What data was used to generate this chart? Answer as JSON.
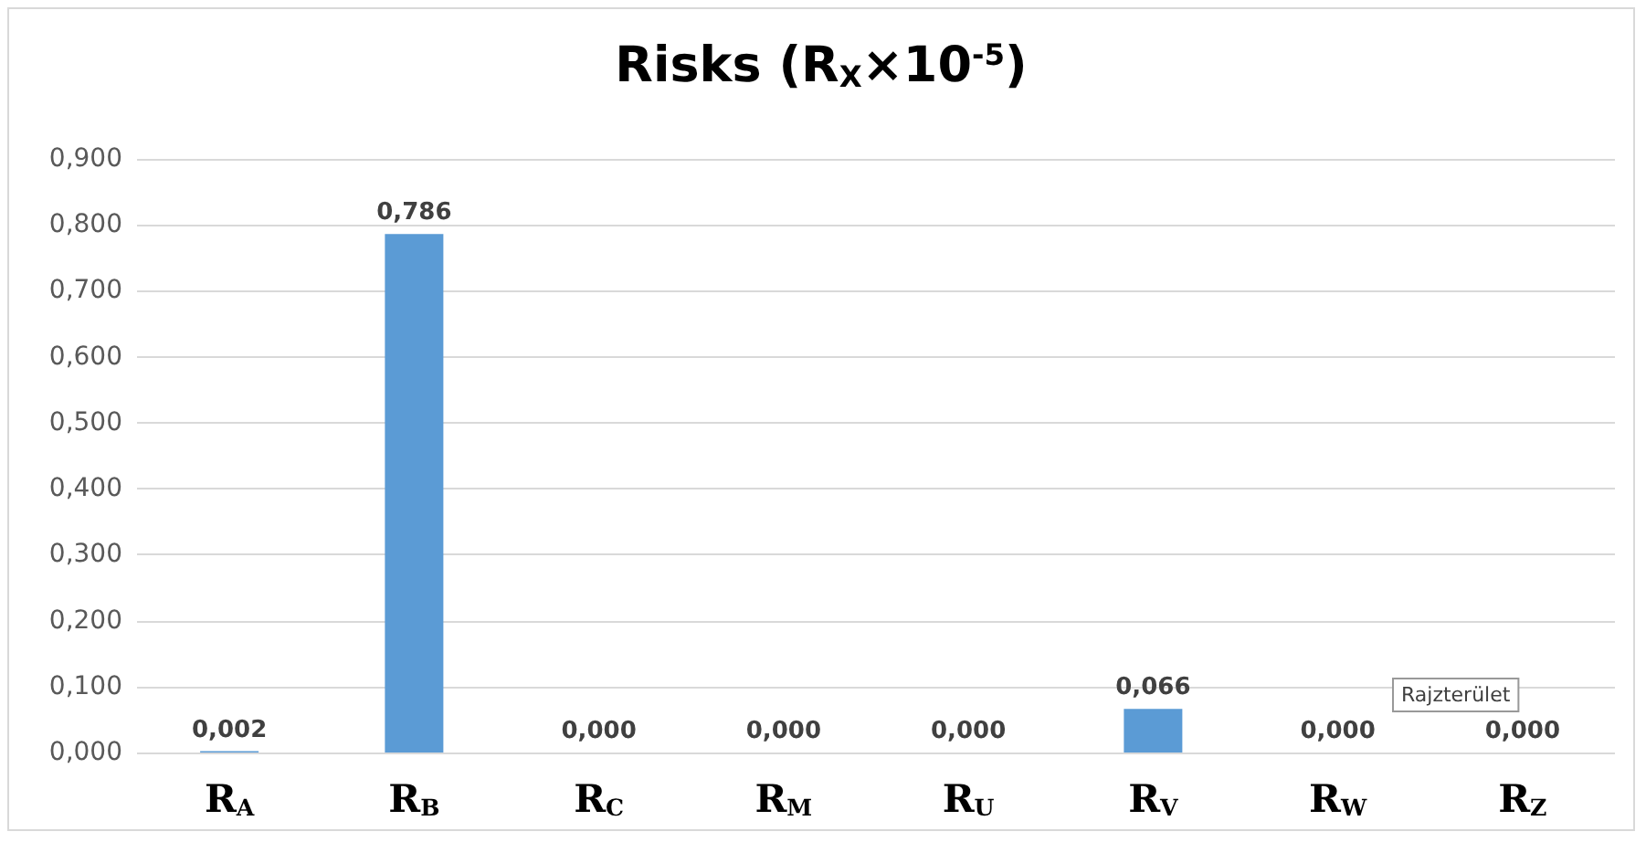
{
  "chart_data": {
    "type": "bar",
    "title": "Risks (R$_{X}$×10$^{-5}$)",
    "categories": [
      "R$_{A}$",
      "R$_{B}$",
      "R$_{C}$",
      "R$_{M}$",
      "R$_{U}$",
      "R$_{V}$",
      "R$_{W}$",
      "R$_{Z}$"
    ],
    "values": [
      0.002,
      0.786,
      0,
      0,
      0,
      0.066,
      0,
      0
    ],
    "value_labels": [
      "0,002",
      "0,786",
      "0,000",
      "0,000",
      "0,000",
      "0,066",
      "0,000",
      "0,000"
    ],
    "color": "#5b9bd5",
    "ylim": [
      0,
      0.9
    ],
    "yticks": [
      {
        "value": 0,
        "label": "0,000"
      },
      {
        "value": 0.1,
        "label": "0,100"
      },
      {
        "value": 0.2,
        "label": "0,200"
      },
      {
        "value": 0.3,
        "label": "0,300"
      },
      {
        "value": 0.4,
        "label": "0,400"
      },
      {
        "value": 0.5,
        "label": "0,500"
      },
      {
        "value": 0.6,
        "label": "0,600"
      },
      {
        "value": 0.7,
        "label": "0,700"
      },
      {
        "value": 0.8,
        "label": "0,800"
      },
      {
        "value": 0.9,
        "label": "0,900"
      }
    ],
    "grid": "y",
    "annotations": [
      "Rajzterület"
    ]
  }
}
